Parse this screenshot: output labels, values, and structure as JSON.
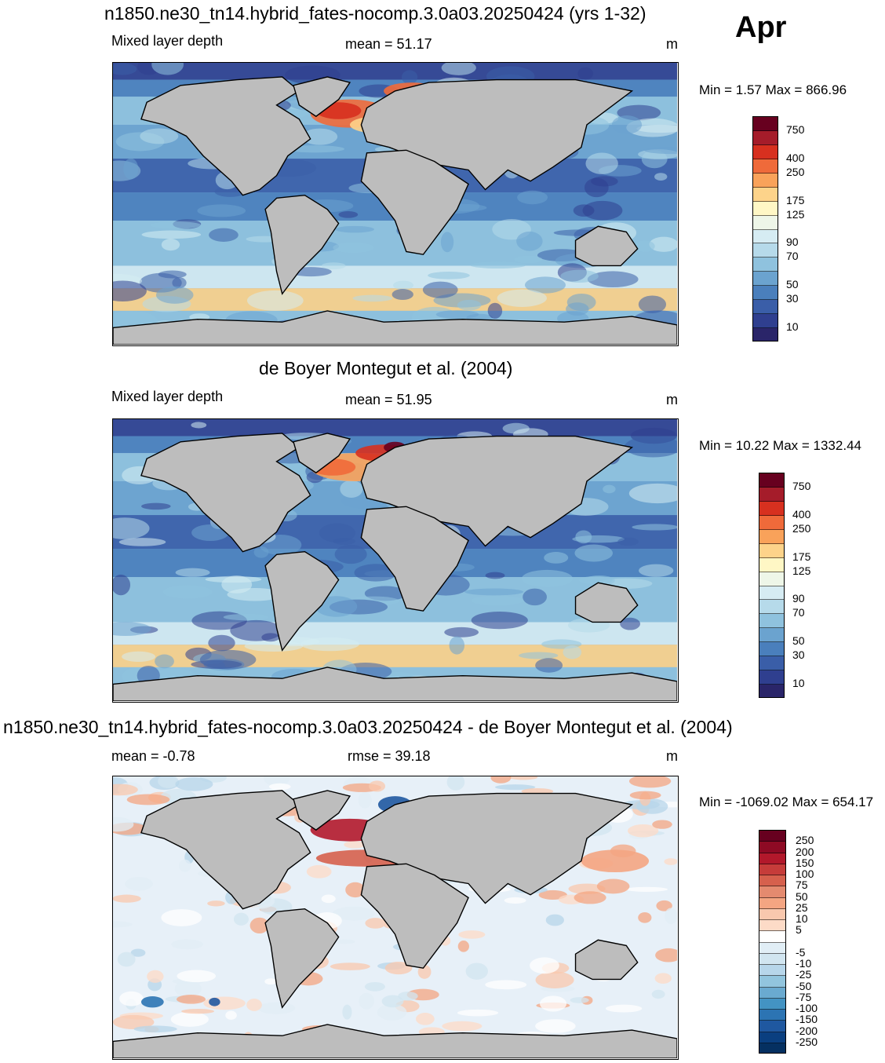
{
  "month": "Apr",
  "panels": [
    {
      "title": "n1850.ne30_tn14.hybrid_fates-nocomp.3.0a03.20250424 (yrs 1-32)",
      "left_label": "Mixed layer depth",
      "center_label": "mean =  51.17",
      "units": "m",
      "minmax": "Min =   1.57 Max = 866.96"
    },
    {
      "title": "de Boyer Montegut et al. (2004)",
      "left_label": "Mixed layer depth",
      "center_label": "mean =  51.95",
      "units": "m",
      "minmax": "Min =  10.22 Max = 1332.44"
    },
    {
      "title": "n1850.ne30_tn14.hybrid_fates-nocomp.3.0a03.20250424 - de Boyer Montegut et al. (2004)",
      "left_label": "mean =  -0.78",
      "center_label": "rmse =  39.18",
      "units": "m",
      "minmax": "Min = -1069.02 Max = 654.17"
    }
  ],
  "colorbar_field": {
    "labels": [
      "750",
      "400",
      "250",
      "175",
      "125",
      "90",
      "70",
      "50",
      "30",
      "10"
    ],
    "colors": [
      "#67001f",
      "#a51c2a",
      "#d7301f",
      "#ef6a3a",
      "#f9a25a",
      "#fdd38a",
      "#fff7c5",
      "#eef6e8",
      "#d6ecf3",
      "#b6daea",
      "#8fc2de",
      "#6ba3cf",
      "#4a7fbc",
      "#3a5ea8",
      "#2f3f8f",
      "#2a2569"
    ]
  },
  "colorbar_diff": {
    "labels": [
      "250",
      "200",
      "150",
      "100",
      "75",
      "50",
      "25",
      "10",
      "5",
      "-5",
      "-10",
      "-25",
      "-50",
      "-75",
      "-100",
      "-150",
      "-200",
      "-250"
    ],
    "colors": [
      "#67001f",
      "#8e0a24",
      "#b2182b",
      "#c63c3a",
      "#d6604d",
      "#e48a6f",
      "#f4a582",
      "#f9c8ae",
      "#fddbc7",
      "#ffffff",
      "#e1eef6",
      "#d1e5f0",
      "#b7d6ea",
      "#92c5de",
      "#6aaad0",
      "#4393c3",
      "#2c74b3",
      "#1f58a0",
      "#0a3f80",
      "#053061"
    ]
  },
  "colors": {
    "land": "#bdbdbd",
    "ocean_base": "#7fa8d6",
    "diff_base": "#e7f0f8"
  }
}
